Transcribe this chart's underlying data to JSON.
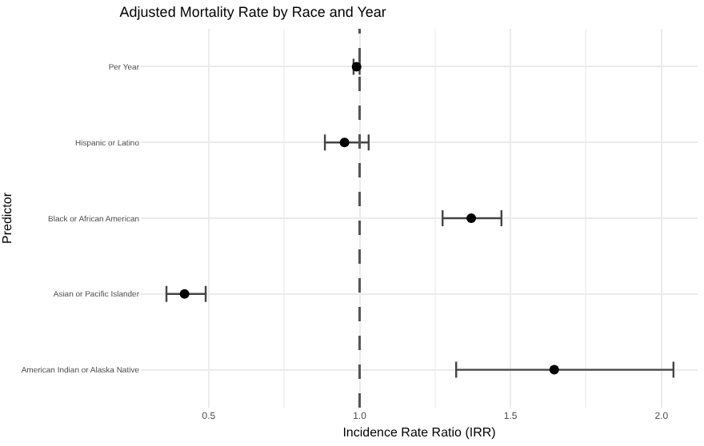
{
  "chart_data": {
    "type": "scatter",
    "orientation": "horizontal",
    "title": "Adjusted Mortality Rate by Race and Year",
    "xlabel": "Incidence Rate Ratio (IRR)",
    "ylabel": "Predictor",
    "categories": [
      "Per Year",
      "Hispanic or Latino",
      "Black or African American",
      "Asian or Pacific Islander",
      "American Indian or Alaska Native"
    ],
    "series": [
      {
        "color": "#000000",
        "values": [
          0.99,
          0.95,
          1.37,
          0.42,
          1.645
        ],
        "errors": [
          [
            0.98,
            1.0
          ],
          [
            0.885,
            1.03
          ],
          [
            1.275,
            1.47
          ],
          [
            0.36,
            0.49
          ],
          [
            1.32,
            2.04
          ]
        ]
      }
    ],
    "xlim": [
      0.275,
      2.12
    ],
    "xticks": [
      {
        "value": 0.5,
        "label": "0.5"
      },
      {
        "value": 1.0,
        "label": "1.0"
      },
      {
        "value": 1.5,
        "label": "1.5"
      },
      {
        "value": 2.0,
        "label": "2.0"
      }
    ],
    "ref_lines": [
      {
        "axis": "x",
        "value": 1.0,
        "label": null,
        "color": "#555555",
        "line_style": "dashed"
      }
    ],
    "grid": true,
    "marker": "circle"
  }
}
